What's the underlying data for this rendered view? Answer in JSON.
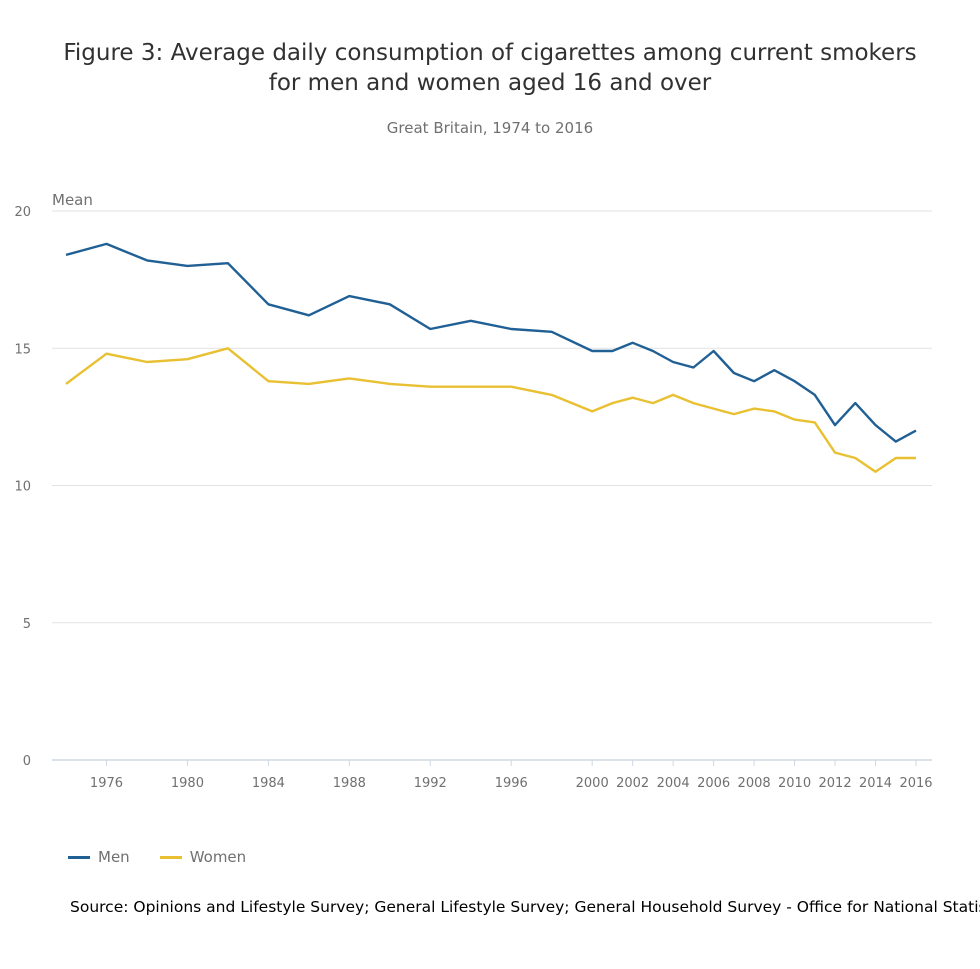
{
  "chart_data": {
    "type": "line",
    "title_line1": "Figure 3: Average daily consumption of cigarettes among current smokers",
    "title_line2": "for men and women aged 16 and over",
    "subtitle": "Great Britain, 1974 to 2016",
    "ylabel": "Mean",
    "xlabel": "",
    "ylim": [
      0,
      20
    ],
    "yticks": [
      0,
      5,
      10,
      15,
      20
    ],
    "xticks": [
      1976,
      1980,
      1984,
      1988,
      1992,
      1996,
      2000,
      2002,
      2004,
      2006,
      2008,
      2010,
      2012,
      2014,
      2016
    ],
    "grid": "horizontal",
    "legend_position": "bottom-left",
    "x": [
      1974,
      1976,
      1978,
      1980,
      1982,
      1984,
      1986,
      1988,
      1990,
      1992,
      1994,
      1996,
      1998,
      2000,
      2001,
      2002,
      2003,
      2004,
      2005,
      2006,
      2007,
      2008,
      2009,
      2010,
      2011,
      2012,
      2013,
      2014,
      2015,
      2016
    ],
    "series": [
      {
        "name": "Men",
        "color": "#206095",
        "values": [
          18.4,
          18.8,
          18.2,
          18.0,
          18.1,
          16.6,
          16.2,
          16.9,
          16.6,
          15.7,
          16.0,
          15.7,
          15.6,
          14.9,
          14.9,
          15.2,
          14.9,
          14.5,
          14.3,
          14.9,
          14.1,
          13.8,
          14.2,
          13.8,
          13.3,
          12.2,
          13.0,
          12.2,
          11.6,
          12.0
        ]
      },
      {
        "name": "Women",
        "color": "#e8c031",
        "values": [
          13.7,
          14.8,
          14.5,
          14.6,
          15.0,
          13.8,
          13.7,
          13.9,
          13.7,
          13.6,
          13.6,
          13.6,
          13.3,
          12.7,
          13.0,
          13.2,
          13.0,
          13.3,
          13.0,
          12.8,
          12.6,
          12.8,
          12.7,
          12.4,
          12.3,
          11.2,
          11.0,
          10.5,
          11.0,
          11.0
        ]
      }
    ],
    "source": "Source: Opinions and Lifestyle Survey; General Lifestyle Survey; General Household Survey - Office for National Statistics"
  }
}
